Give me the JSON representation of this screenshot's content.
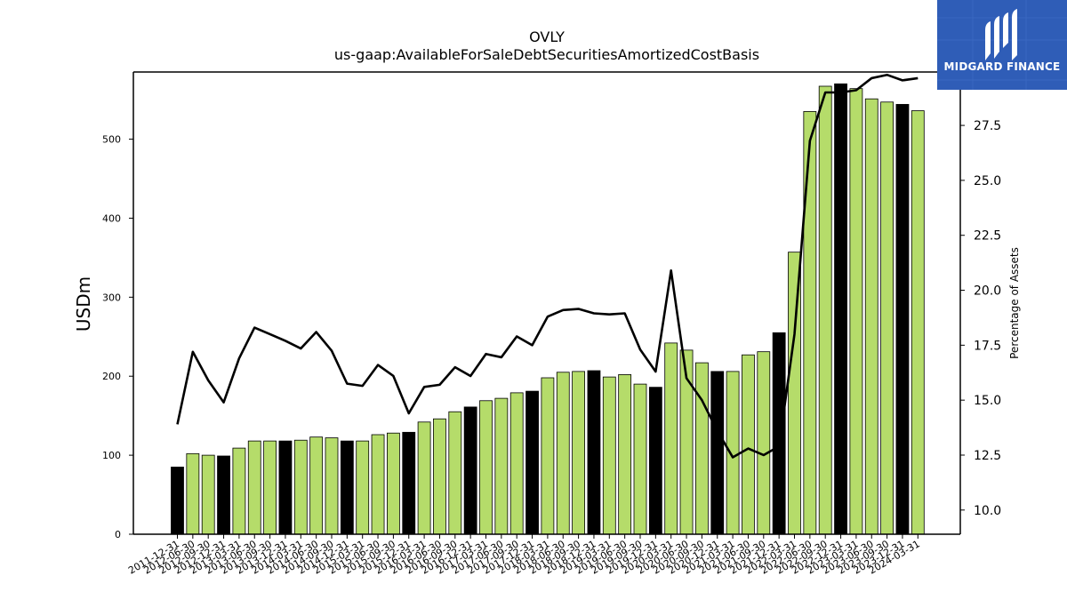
{
  "title": "OVLY",
  "subtitle": "us-gaap:AvailableForSaleDebtSecuritiesAmortizedCostBasis",
  "logo": {
    "text": "MIDGARD FINANCE",
    "color": "#2f5db7"
  },
  "colors": {
    "bar_green": "#b5dc6a",
    "bar_black": "#000000",
    "line": "#000000"
  },
  "chart_data": {
    "type": "bar",
    "ylabel": "USDm",
    "y2label": "Percentage of Assets",
    "ylim": [
      0,
      585
    ],
    "y2lim": [
      8.9,
      29.93
    ],
    "yticks": [
      0,
      100,
      200,
      300,
      400,
      500
    ],
    "y2ticks": [
      10.0,
      12.5,
      15.0,
      17.5,
      20.0,
      22.5,
      25.0,
      27.5,
      30.0
    ],
    "y2tick_labels": [
      "10.0",
      "12.5",
      "15.0",
      "17.5",
      "20.0",
      "22.5",
      "25.0",
      "27.5",
      "30.0"
    ],
    "grid": false,
    "categories": [
      "2011-12-31",
      "2012-06-30",
      "2012-09-30",
      "2012-12-31",
      "2013-03-31",
      "2013-06-30",
      "2013-09-30",
      "2013-12-31",
      "2014-03-31",
      "2014-06-30",
      "2014-09-30",
      "2014-12-31",
      "2015-03-31",
      "2015-06-30",
      "2015-09-30",
      "2015-12-31",
      "2016-03-31",
      "2016-06-30",
      "2016-09-30",
      "2016-12-31",
      "2017-03-31",
      "2017-06-30",
      "2017-09-30",
      "2017-12-31",
      "2018-03-31",
      "2018-06-30",
      "2018-09-30",
      "2018-12-31",
      "2019-03-31",
      "2019-06-30",
      "2019-09-30",
      "2019-12-31",
      "2020-03-31",
      "2020-06-30",
      "2020-09-30",
      "2020-12-31",
      "2021-03-31",
      "2021-06-30",
      "2021-09-30",
      "2021-12-31",
      "2022-03-31",
      "2022-06-30",
      "2022-09-30",
      "2022-12-31",
      "2023-03-31",
      "2023-06-30",
      "2023-09-30",
      "2023-12-31",
      "2024-03-31"
    ],
    "year_end": [
      true,
      false,
      false,
      true,
      false,
      false,
      false,
      true,
      false,
      false,
      false,
      true,
      false,
      false,
      false,
      true,
      false,
      false,
      false,
      true,
      false,
      false,
      false,
      true,
      false,
      false,
      false,
      true,
      false,
      false,
      false,
      true,
      false,
      false,
      false,
      true,
      false,
      false,
      false,
      true,
      false,
      false,
      false,
      true,
      false,
      false,
      false,
      true,
      false
    ],
    "series": [
      {
        "name": "USDm",
        "axis": "left",
        "type": "bar",
        "values": [
          85,
          102,
          100,
          99,
          109,
          118,
          118,
          118,
          119,
          123,
          122,
          118,
          118,
          126,
          128,
          129,
          142,
          146,
          155,
          161,
          169,
          172,
          179,
          181,
          198,
          205,
          206,
          207,
          199,
          202,
          190,
          186,
          242,
          233,
          217,
          206,
          206,
          227,
          231,
          255,
          357,
          535,
          567,
          570,
          564,
          551,
          547,
          544,
          536
        ]
      },
      {
        "name": "Percentage of Assets",
        "axis": "right",
        "type": "line",
        "values": [
          13.9,
          17.2,
          15.9,
          14.9,
          16.9,
          18.3,
          18.0,
          17.7,
          17.35,
          18.1,
          17.25,
          15.75,
          15.65,
          16.6,
          16.1,
          14.4,
          15.6,
          15.7,
          16.5,
          16.1,
          17.1,
          16.95,
          17.9,
          17.5,
          18.8,
          19.1,
          19.15,
          18.95,
          18.9,
          18.95,
          17.3,
          16.3,
          20.9,
          16.0,
          15.0,
          13.6,
          12.4,
          12.8,
          12.5,
          12.9,
          18.0,
          26.8,
          29.0,
          29.0,
          29.1,
          29.65,
          29.8,
          29.55,
          29.65
        ]
      }
    ]
  }
}
